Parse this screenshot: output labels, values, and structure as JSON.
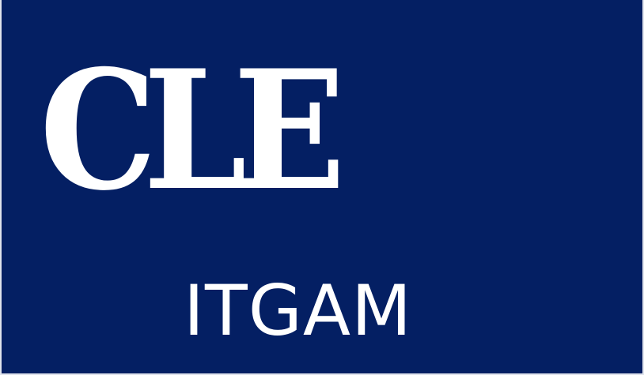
{
  "colors": {
    "background": "#041f63",
    "text": "#ffffff",
    "edge": "#dfe3ec"
  },
  "graphic": {
    "title": "CLE",
    "subtitle": "ITGAM"
  }
}
